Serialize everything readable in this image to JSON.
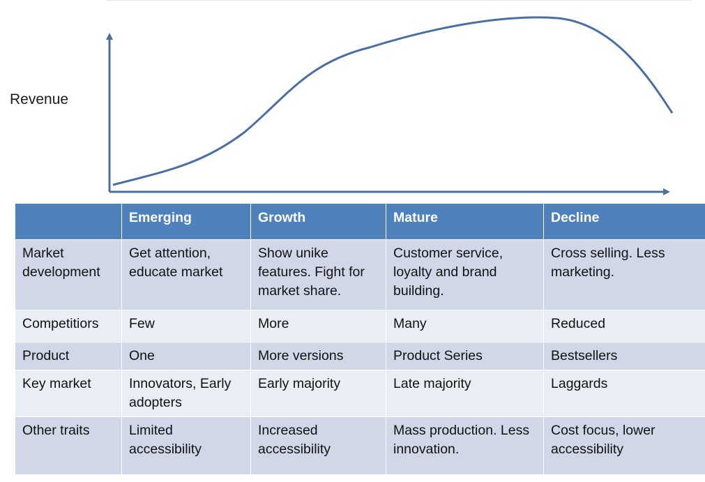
{
  "y_axis_label": "Revenue",
  "curve_color": "#4a6fa5",
  "header_color": "#4f81bd",
  "table": {
    "headers": [
      "",
      "Emerging",
      "Growth",
      "Mature",
      "Decline"
    ],
    "rows": [
      {
        "label": "Market development",
        "cells": [
          "Get attention, educate market",
          "Show unike features. Fight for market share.",
          "Customer service, loyalty and brand building.",
          "Cross selling. Less marketing."
        ]
      },
      {
        "label": "Competitiors",
        "cells": [
          "Few",
          "More",
          "Many",
          "Reduced"
        ]
      },
      {
        "label": "Product",
        "cells": [
          "One",
          "More versions",
          "Product Series",
          "Bestsellers"
        ]
      },
      {
        "label": "Key market",
        "cells": [
          "Innovators,  Early adopters",
          "Early majority",
          "Late majority",
          "Laggards"
        ]
      },
      {
        "label": "Other traits",
        "cells": [
          "Limited accessibility",
          "Increased accessibility",
          "Mass production. Less innovation.",
          "Cost focus, lower accessibility"
        ]
      }
    ]
  }
}
